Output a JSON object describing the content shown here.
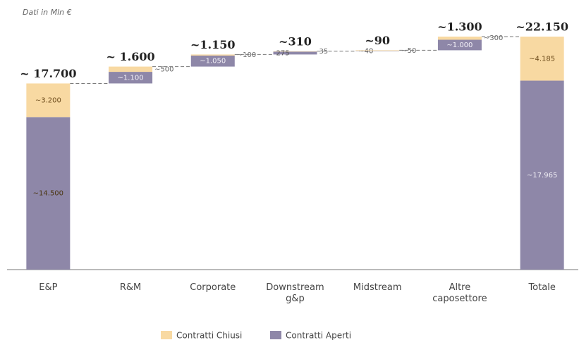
{
  "chart_data": {
    "type": "waterfall",
    "subtitle": "Dati in Mln €",
    "categories": [
      "E&P",
      "R&M",
      "Corporate",
      "Downstream g&p",
      "Midstream",
      "Altre caposettore",
      "Totale"
    ],
    "series": [
      {
        "name": "Contratti Aperti",
        "color": "#8e87a8",
        "values": [
          14500,
          1100,
          1050,
          275,
          40,
          1000,
          17965
        ],
        "value_labels": [
          "~14.500",
          "~1.100",
          "~1.050",
          "275",
          "~40",
          "~1.000",
          "~17.965"
        ]
      },
      {
        "name": "Contratti Chiusi",
        "color": "#f8d9a2",
        "values": [
          3200,
          500,
          100,
          35,
          50,
          300,
          4185
        ],
        "value_labels": [
          "~3.200",
          "~500",
          "~100",
          "35",
          "~50",
          "~300",
          "~4.185"
        ]
      }
    ],
    "totals": {
      "values": [
        17700,
        1600,
        1150,
        310,
        90,
        1300,
        22150
      ],
      "value_labels": [
        "~ 17.700",
        "~ 1.600",
        "~1.150",
        "~310",
        "~90",
        "~1.300",
        "~22.150"
      ]
    }
  }
}
